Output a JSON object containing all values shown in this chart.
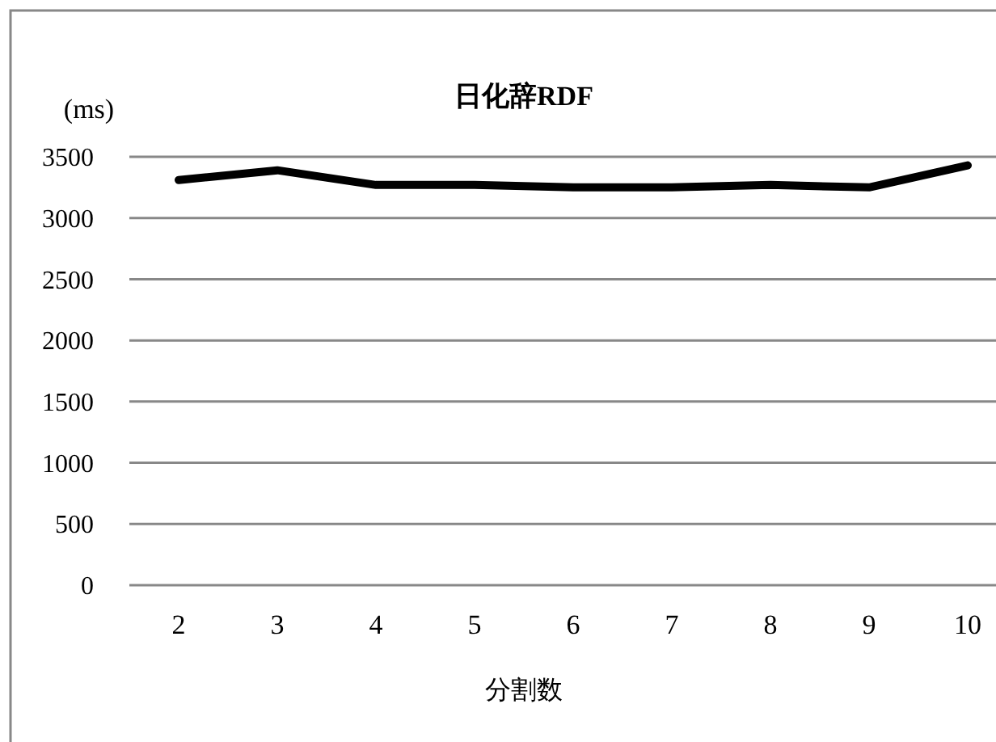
{
  "chart_data": {
    "type": "line",
    "title": "日化辞RDF",
    "ylabel": "(ms)",
    "xlabel": "分割数",
    "categories": [
      "2",
      "3",
      "4",
      "5",
      "6",
      "7",
      "8",
      "9",
      "10"
    ],
    "series": [
      {
        "color": "#000000",
        "values": [
          3310,
          3390,
          3270,
          3270,
          3250,
          3250,
          3270,
          3250,
          3430
        ]
      }
    ],
    "ylim": [
      0,
      3500
    ],
    "yticks": [
      0,
      500,
      1000,
      1500,
      2000,
      2500,
      3000,
      3500
    ],
    "grid": "y",
    "marker": "none",
    "line_style": "solid"
  }
}
